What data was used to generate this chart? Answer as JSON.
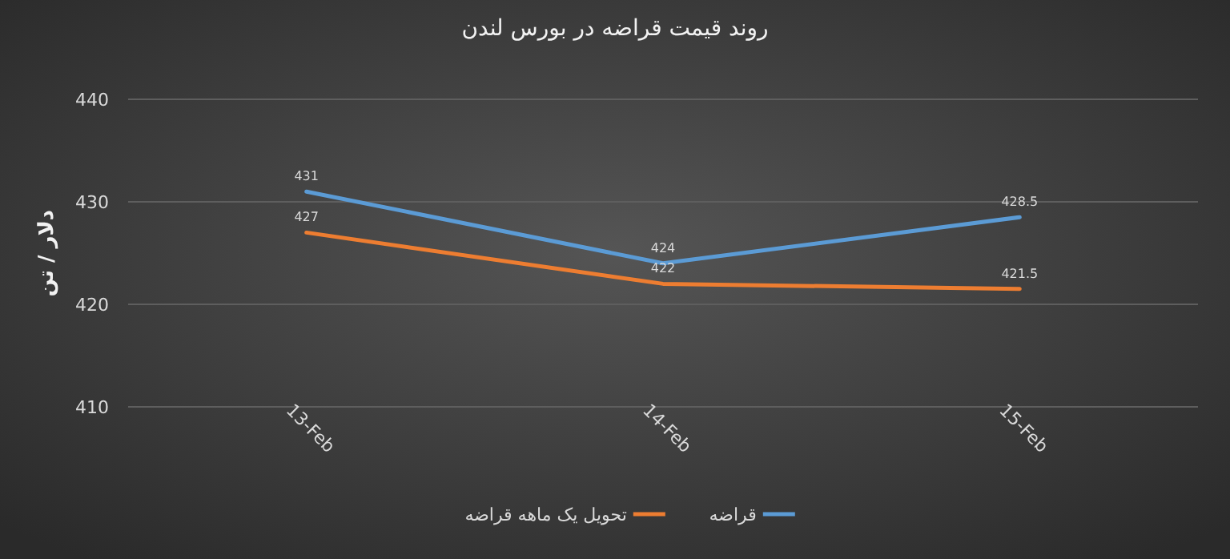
{
  "chart_data": {
    "type": "line",
    "title": "روند قیمت قراضه در بورس لندن",
    "ylabel": "دلار / تن",
    "categories": [
      "13-Feb",
      "14-Feb",
      "15-Feb"
    ],
    "series": [
      {
        "name": "قراضه",
        "color": "#5b9bd5",
        "values": [
          431,
          424,
          428.5
        ]
      },
      {
        "name": "تحویل یک ماهه قراضه",
        "color": "#ed7d31",
        "values": [
          427,
          422,
          421.5
        ]
      }
    ],
    "ylim": [
      410,
      440
    ],
    "yticks": [
      410,
      420,
      430,
      440
    ],
    "grid": "y",
    "legend": "bottom",
    "data_labels": true,
    "marker": "none",
    "line_style": "solid"
  }
}
